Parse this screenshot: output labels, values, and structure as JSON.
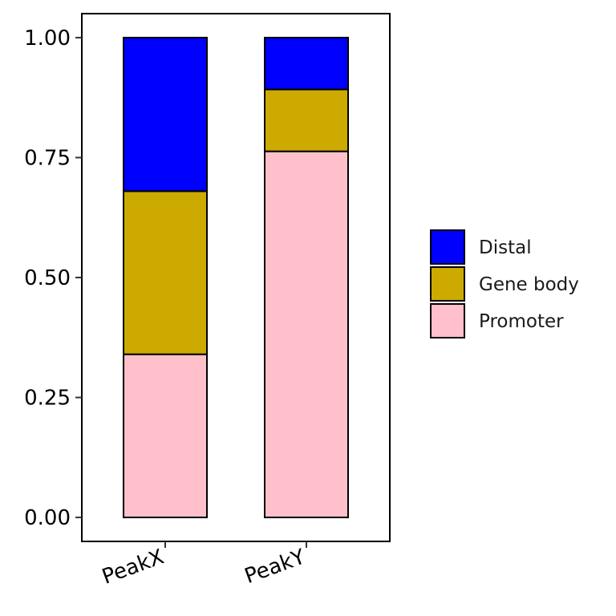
{
  "chart_data": {
    "type": "bar",
    "stacked": true,
    "categories": [
      "PeakX",
      "PeakY"
    ],
    "series": [
      {
        "name": "Promoter",
        "values": [
          0.34,
          0.763
        ],
        "color": "#FFC0CB"
      },
      {
        "name": "Gene body",
        "values": [
          0.34,
          0.129
        ],
        "color": "#CDAA00"
      },
      {
        "name": "Distal",
        "values": [
          0.32,
          0.108
        ],
        "color": "#0000FF"
      }
    ],
    "legend_order": [
      "Distal",
      "Gene body",
      "Promoter"
    ],
    "legend_position": "right",
    "y_ticks": [
      "0.00",
      "0.25",
      "0.50",
      "0.75",
      "1.00"
    ],
    "ylim": [
      -0.05,
      1.05
    ],
    "title": "",
    "xlabel": "",
    "ylabel": "",
    "grid": false
  }
}
